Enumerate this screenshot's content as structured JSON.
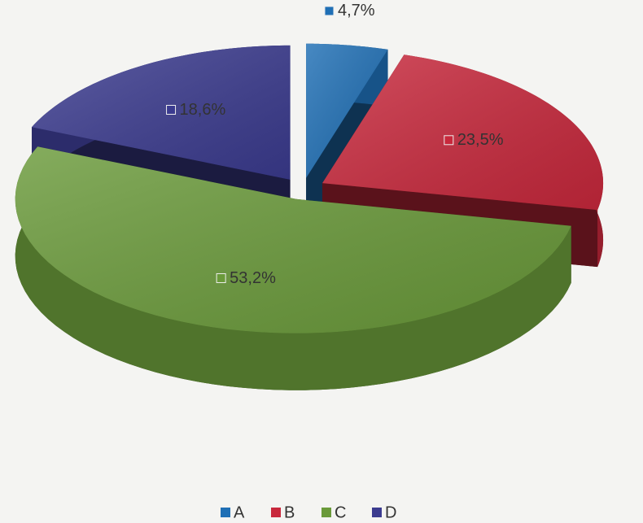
{
  "chart_data": {
    "type": "pie",
    "categories": [
      "A",
      "B",
      "C",
      "D"
    ],
    "values": [
      4.7,
      23.5,
      53.2,
      18.6
    ],
    "value_labels": [
      "4,7%",
      "23,5%",
      "53,2%",
      "18,6%"
    ],
    "colors": [
      "#1f6fb5",
      "#c8283c",
      "#6a9a3a",
      "#3b3b8f"
    ],
    "legend": "bottom"
  }
}
